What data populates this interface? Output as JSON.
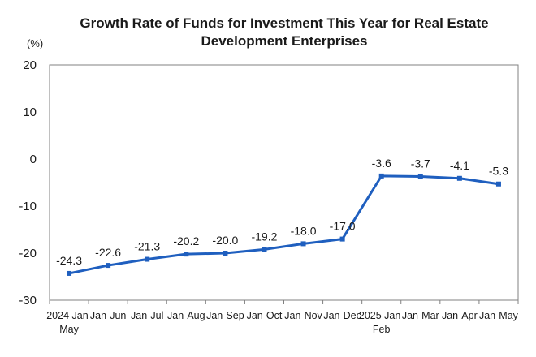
{
  "chart_data": {
    "type": "line",
    "title": [
      "Growth Rate of Funds for Investment This Year for Real Estate",
      "Development Enterprises"
    ],
    "y_unit": "(%)",
    "ylim": [
      -30,
      20
    ],
    "yticks": [
      "20",
      "10",
      "0",
      "-10",
      "-20",
      "-30"
    ],
    "grid": false,
    "colors": {
      "line": "#1f5fbf",
      "axis": "#808080"
    },
    "categories": [
      [
        "2024 Jan-",
        "May"
      ],
      [
        "Jan-Jun"
      ],
      [
        "Jan-Jul"
      ],
      [
        "Jan-Aug"
      ],
      [
        "Jan-Sep"
      ],
      [
        "Jan-Oct"
      ],
      [
        "Jan-Nov"
      ],
      [
        "Jan-Dec"
      ],
      [
        "2025 Jan-",
        "Feb"
      ],
      [
        "Jan-Mar"
      ],
      [
        "Jan-Apr"
      ],
      [
        "Jan-May"
      ]
    ],
    "values": [
      -24.3,
      -22.6,
      -21.3,
      -20.2,
      -20.0,
      -19.2,
      -18.0,
      -17.0,
      -3.6,
      -3.7,
      -4.1,
      -5.3
    ],
    "data_labels": [
      "-24.3",
      "-22.6",
      "-21.3",
      "-20.2",
      "-20.0",
      "-19.2",
      "-18.0",
      "-17.0",
      "-3.6",
      "-3.7",
      "-4.1",
      "-5.3"
    ]
  }
}
